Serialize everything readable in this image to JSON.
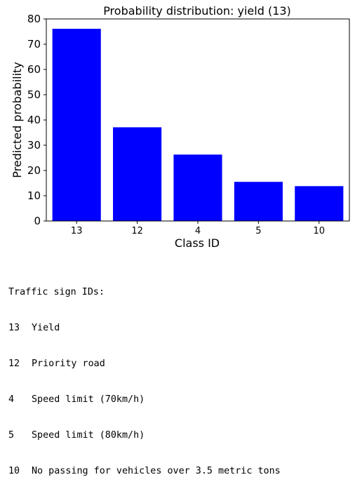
{
  "chart_data": {
    "type": "bar",
    "title": "Probability distribution: yield (13)",
    "xlabel": "Class ID",
    "ylabel": "Predicted probability",
    "categories": [
      "13",
      "12",
      "4",
      "5",
      "10"
    ],
    "values": [
      76.1,
      37.1,
      26.3,
      15.5,
      13.8
    ],
    "ylim": [
      0,
      80
    ],
    "yticks": [
      0,
      10,
      20,
      30,
      40,
      50,
      60,
      70,
      80
    ],
    "grid": false,
    "bar_color": "#0000ff"
  },
  "legend": {
    "heading": "Traffic sign IDs:",
    "items": [
      {
        "id": "13",
        "name": "Yield"
      },
      {
        "id": "12",
        "name": "Priority road"
      },
      {
        "id": "4",
        "name": "Speed limit (70km/h)"
      },
      {
        "id": "5",
        "name": "Speed limit (80km/h)"
      },
      {
        "id": "10",
        "name": "No passing for vehicles over 3.5 metric tons"
      }
    ]
  }
}
